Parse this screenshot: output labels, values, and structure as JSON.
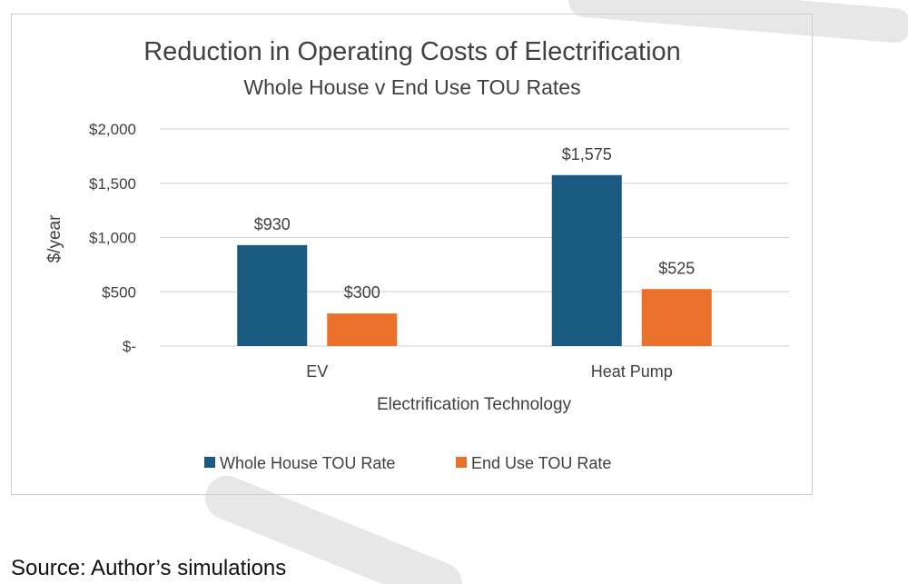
{
  "chart_data": {
    "type": "bar",
    "title": "Reduction in Operating Costs of Electrification",
    "subtitle": "Whole House v End Use TOU Rates",
    "xlabel": "Electrification Technology",
    "ylabel": "$/year",
    "categories": [
      "EV",
      "Heat Pump"
    ],
    "series": [
      {
        "name": "Whole House TOU Rate",
        "values": [
          930,
          1575
        ],
        "labels": [
          "$930",
          "$1,575"
        ],
        "color": "#1a5a80"
      },
      {
        "name": "End Use TOU Rate",
        "values": [
          300,
          525
        ],
        "labels": [
          "$300",
          "$525"
        ],
        "color": "#e9712c"
      }
    ],
    "ylim": [
      0,
      2000
    ],
    "yticks": [
      0,
      500,
      1000,
      1500,
      2000
    ],
    "ytick_labels": [
      "$-",
      "$500",
      "$1,000",
      "$1,500",
      "$2,000"
    ],
    "grid": true,
    "legend_position": "bottom"
  },
  "source": "Source: Author’s simulations",
  "colors": {
    "gridline": "#d9d9d9",
    "text": "#404040",
    "watermark": "#e4e4e4"
  }
}
